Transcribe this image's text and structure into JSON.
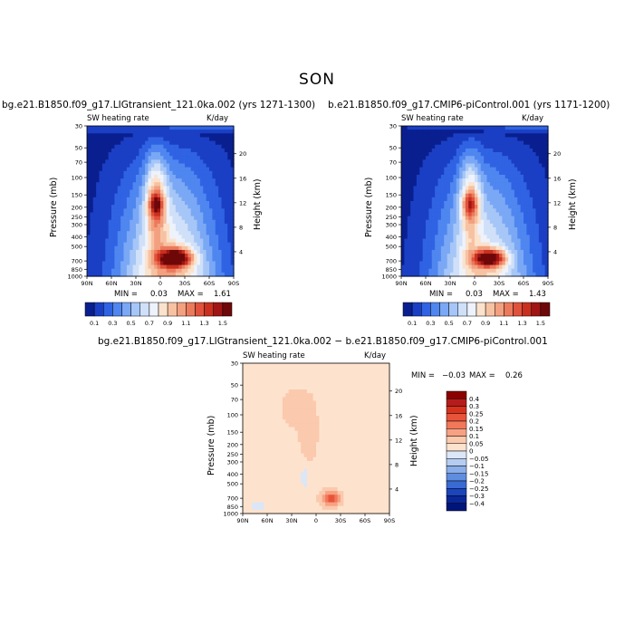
{
  "figure": {
    "title": "SON"
  },
  "chart_data": [
    {
      "type": "heatmap",
      "title": "bg.e21.B1850.f09_g17.LIGtransient_121.0ka.002 (yrs 1271-1300)",
      "variable": "SW heating rate",
      "units": "K/day",
      "xlabel": "",
      "ylabel": "Pressure (mb)",
      "y2label": "Height (km)",
      "x_ticks": [
        "90N",
        "60N",
        "30N",
        "0",
        "30S",
        "60S",
        "90S"
      ],
      "y_ticks": [
        "1000",
        "850",
        "700",
        "500",
        "400",
        "300",
        "250",
        "200",
        "150",
        "100",
        "70",
        "50",
        "30"
      ],
      "y2_ticks": [
        "4",
        "8",
        "12",
        "16",
        "20"
      ],
      "min_label": "MIN =",
      "min": "0.03",
      "max_label": "MAX =",
      "max": "1.61",
      "colorbar_levels": [
        "0.1",
        "0.3",
        "0.5",
        "0.7",
        "0.9",
        "1.1",
        "1.3",
        "1.5"
      ],
      "y_scale": "log-pressure"
    },
    {
      "type": "heatmap",
      "title": "b.e21.B1850.f09_g17.CMIP6-piControl.001 (yrs 1171-1200)",
      "variable": "SW heating rate",
      "units": "K/day",
      "xlabel": "",
      "ylabel": "Pressure (mb)",
      "y2label": "Height (km)",
      "x_ticks": [
        "90N",
        "60N",
        "30N",
        "0",
        "30S",
        "60S",
        "90S"
      ],
      "y_ticks": [
        "1000",
        "850",
        "700",
        "500",
        "400",
        "300",
        "250",
        "200",
        "150",
        "100",
        "70",
        "50",
        "30"
      ],
      "y2_ticks": [
        "4",
        "8",
        "12",
        "16",
        "20"
      ],
      "min_label": "MIN =",
      "min": "0.03",
      "max_label": "MAX =",
      "max": "1.43",
      "colorbar_levels": [
        "0.1",
        "0.3",
        "0.5",
        "0.7",
        "0.9",
        "1.1",
        "1.3",
        "1.5"
      ],
      "y_scale": "log-pressure"
    },
    {
      "type": "heatmap",
      "title": "bg.e21.B1850.f09_g17.LIGtransient_121.0ka.002 − b.e21.B1850.f09_g17.CMIP6-piControl.001",
      "variable": "SW heating rate",
      "units": "K/day",
      "xlabel": "",
      "ylabel": "Pressure (mb)",
      "y2label": "Height (km)",
      "x_ticks": [
        "90N",
        "60N",
        "30N",
        "0",
        "30S",
        "60S",
        "90S"
      ],
      "y_ticks": [
        "1000",
        "850",
        "700",
        "500",
        "400",
        "300",
        "250",
        "200",
        "150",
        "100",
        "70",
        "50",
        "30"
      ],
      "y2_ticks": [
        "4",
        "8",
        "12",
        "16",
        "20"
      ],
      "min_label": "MIN =",
      "min": "−0.03",
      "max_label": "MAX =",
      "max": "0.26",
      "colorbar_levels": [
        "0.4",
        "0.3",
        "0.25",
        "0.2",
        "0.15",
        "0.1",
        "0.05",
        "0",
        "−0.05",
        "−0.1",
        "−0.15",
        "−0.2",
        "−0.25",
        "−0.3",
        "−0.4"
      ],
      "y_scale": "log-pressure"
    }
  ],
  "colors": {
    "seq": [
      "#0a1f8f",
      "#1a3fc4",
      "#2f63e3",
      "#4f86f0",
      "#7aa8f5",
      "#a6c6f7",
      "#cfe0f8",
      "#eef2fb",
      "#fbe2cc",
      "#f7c2a2",
      "#f2a07f",
      "#eb7a5c",
      "#e0523c",
      "#c9301f",
      "#a01515",
      "#6e0808"
    ],
    "diff": [
      "#8b0000",
      "#b71c1c",
      "#d6331e",
      "#e8543a",
      "#f2785a",
      "#f7a183",
      "#fbc9ad",
      "#fde3cd",
      "#dbe6f7",
      "#b6ccf1",
      "#8aaeea",
      "#5f8de0",
      "#3a6ad3",
      "#1c45bc",
      "#0b2699",
      "#00147a"
    ]
  }
}
